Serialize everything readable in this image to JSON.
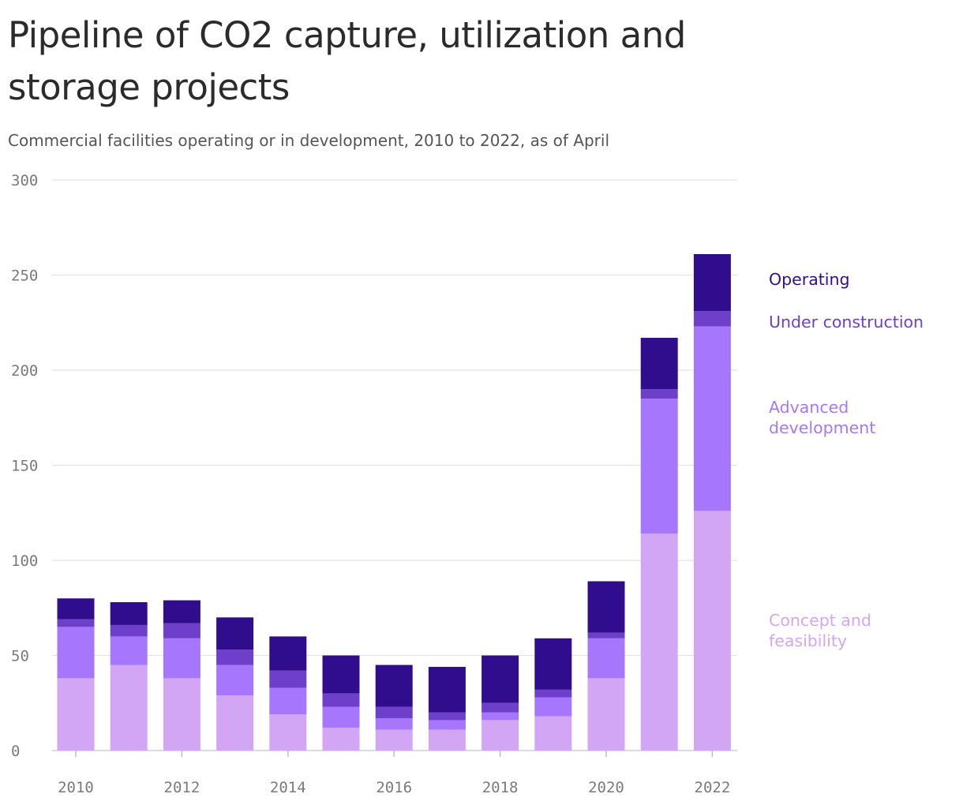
{
  "chart_data": {
    "type": "bar",
    "stacked": true,
    "title": "Pipeline of CO2 capture, utilization and storage projects",
    "subtitle": "Commercial facilities operating or in development, 2010 to 2022, as of April",
    "x": [
      2010,
      2011,
      2012,
      2013,
      2014,
      2015,
      2016,
      2017,
      2018,
      2019,
      2020,
      2021,
      2022
    ],
    "x_ticks": [
      "2010",
      "2012",
      "2014",
      "2016",
      "2018",
      "2020",
      "2022"
    ],
    "y_ticks": [
      "0",
      "50",
      "100",
      "150",
      "200",
      "250",
      "300"
    ],
    "ylim": [
      0,
      300
    ],
    "grid": true,
    "legend_placement": "right",
    "series": [
      {
        "name": "Concept and feasibility",
        "legend_lines": [
          "Concept and",
          "feasibility"
        ],
        "color": "#d3a6f5",
        "values": [
          38,
          45,
          38,
          29,
          19,
          12,
          11,
          11,
          16,
          18,
          38,
          114,
          126
        ]
      },
      {
        "name": "Advanced development",
        "legend_lines": [
          "Advanced",
          "development"
        ],
        "color": "#a677fc",
        "values": [
          27,
          15,
          21,
          16,
          14,
          11,
          6,
          5,
          4,
          10,
          21,
          71,
          97
        ]
      },
      {
        "name": "Under construction",
        "legend_lines": [
          "Under construction"
        ],
        "color": "#6d3fca",
        "values": [
          4,
          6,
          8,
          8,
          9,
          7,
          6,
          4,
          5,
          4,
          3,
          5,
          8
        ]
      },
      {
        "name": "Operating",
        "legend_lines": [
          "Operating"
        ],
        "color": "#300d8d",
        "values": [
          11,
          12,
          12,
          17,
          18,
          20,
          22,
          24,
          25,
          27,
          27,
          27,
          30
        ]
      }
    ]
  }
}
